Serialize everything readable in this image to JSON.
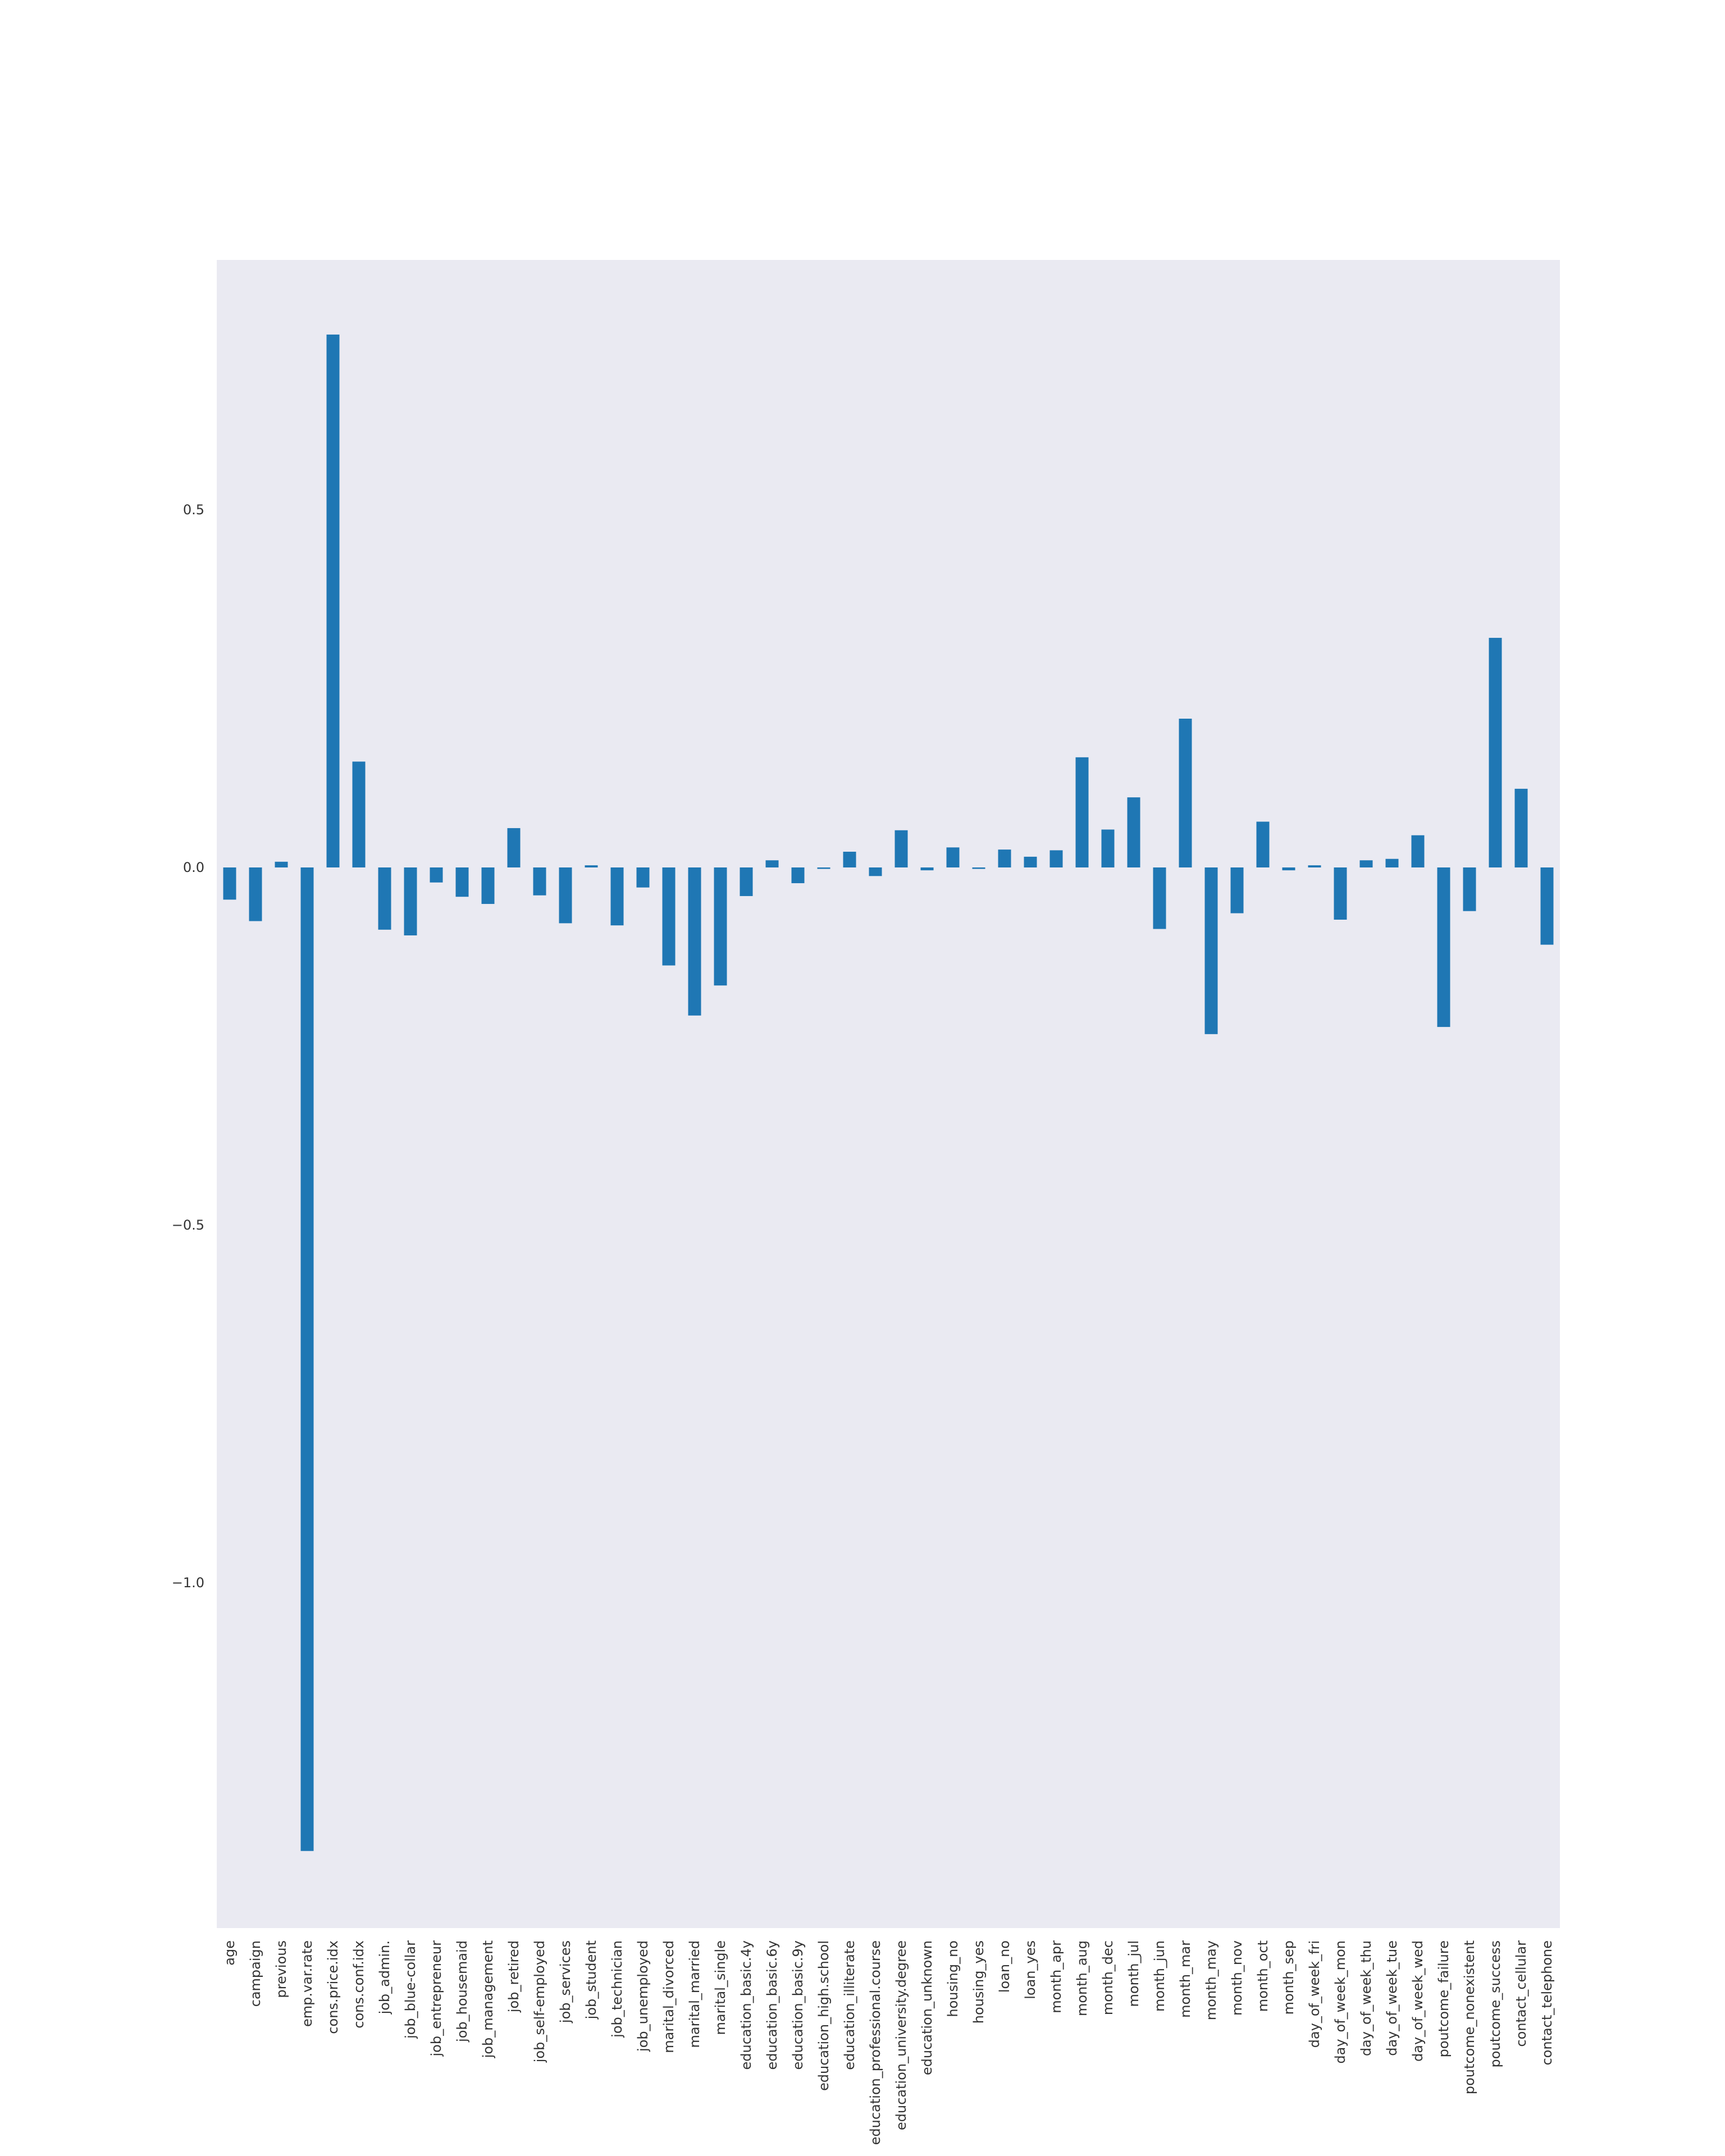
{
  "chart_data": {
    "type": "bar",
    "title": "",
    "xlabel": "",
    "ylabel": "",
    "ylim": [
      -1.47,
      0.85
    ],
    "yticks": [
      -1.0,
      -0.5,
      0.0,
      0.5
    ],
    "ytick_labels": [
      "−1.0",
      "−0.5",
      "0.0",
      "0.5"
    ],
    "grid": false,
    "colors": {
      "bar": "#1f77b4",
      "plot_background": "#eaeaf2",
      "page_background": "#ffffff"
    },
    "categories": [
      "age",
      "campaign",
      "previous",
      "emp.var.rate",
      "cons.price.idx",
      "cons.conf.idx",
      "job_admin.",
      "job_blue-collar",
      "job_entrepreneur",
      "job_housemaid",
      "job_management",
      "job_retired",
      "job_self-employed",
      "job_services",
      "job_student",
      "job_technician",
      "job_unemployed",
      "marital_divorced",
      "marital_married",
      "marital_single",
      "education_basic.4y",
      "education_basic.6y",
      "education_basic.9y",
      "education_high.school",
      "education_illiterate",
      "education_professional.course",
      "education_university.degree",
      "education_unknown",
      "housing_no",
      "housing_yes",
      "loan_no",
      "loan_yes",
      "month_apr",
      "month_aug",
      "month_dec",
      "month_jul",
      "month_jun",
      "month_mar",
      "month_may",
      "month_nov",
      "month_oct",
      "month_sep",
      "day_of_week_fri",
      "day_of_week_mon",
      "day_of_week_thu",
      "day_of_week_tue",
      "day_of_week_wed",
      "poutcome_failure",
      "poutcome_nonexistent",
      "poutcome_success",
      "contact_cellular",
      "contact_telephone"
    ],
    "values": [
      -0.045,
      -0.075,
      0.008,
      -1.375,
      0.745,
      0.148,
      -0.087,
      -0.095,
      -0.021,
      -0.041,
      -0.051,
      0.055,
      -0.039,
      -0.078,
      0.003,
      -0.081,
      -0.028,
      -0.137,
      -0.207,
      -0.165,
      -0.04,
      0.01,
      -0.022,
      -0.002,
      0.022,
      -0.012,
      0.052,
      -0.004,
      0.028,
      -0.002,
      0.025,
      0.015,
      0.024,
      0.154,
      0.053,
      0.098,
      -0.086,
      0.208,
      -0.233,
      -0.064,
      0.064,
      -0.004,
      0.003,
      -0.073,
      0.01,
      0.012,
      0.045,
      -0.223,
      -0.061,
      0.321,
      0.11,
      -0.108
    ]
  }
}
